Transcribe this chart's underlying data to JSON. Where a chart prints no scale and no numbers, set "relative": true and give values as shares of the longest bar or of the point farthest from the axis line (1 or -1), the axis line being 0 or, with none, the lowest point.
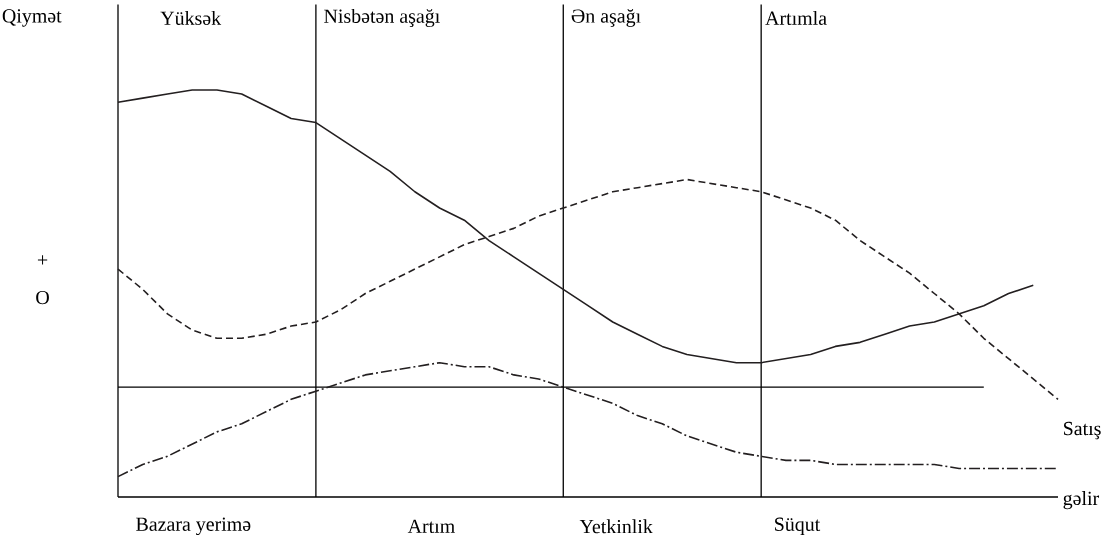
{
  "chart_data": {
    "type": "line",
    "relative": true,
    "ylabel": "Qiymət",
    "categories": [
      null,
      null,
      null,
      null,
      null,
      null,
      null,
      null,
      null,
      null,
      null,
      null,
      null,
      null,
      null,
      null,
      null,
      null,
      null,
      null,
      null,
      null,
      null,
      null,
      null,
      null,
      null,
      null,
      null,
      null,
      null,
      null,
      null,
      null,
      null,
      null,
      null,
      null,
      null
    ],
    "series": [
      {
        "color": "#231f20",
        "line_style": "solid",
        "values": [
          0.97,
          0.98,
          0.99,
          1.0,
          1.0,
          0.99,
          0.96,
          0.93,
          0.92,
          0.88,
          0.84,
          0.8,
          0.75,
          0.71,
          0.68,
          0.63,
          0.59,
          0.55,
          0.51,
          0.47,
          0.43,
          0.4,
          0.37,
          0.35,
          0.34,
          0.33,
          0.33,
          0.34,
          0.35,
          0.37,
          0.38,
          0.4,
          0.42,
          0.43,
          0.45,
          0.47,
          0.5,
          0.52,
          null
        ]
      },
      {
        "name": "Satış",
        "color": "#231f20",
        "line_style": "dashed",
        "values": [
          0.56,
          0.51,
          0.45,
          0.41,
          0.39,
          0.39,
          0.4,
          0.42,
          0.43,
          0.46,
          0.5,
          0.53,
          0.56,
          0.59,
          0.62,
          0.64,
          0.66,
          0.69,
          0.71,
          0.73,
          0.75,
          0.76,
          0.77,
          0.78,
          0.77,
          0.76,
          0.75,
          0.73,
          0.71,
          0.68,
          0.63,
          0.59,
          0.55,
          0.5,
          0.45,
          0.39,
          0.34,
          0.29,
          0.24
        ]
      },
      {
        "name": "gəlir",
        "color": "#231f20",
        "line_style": "dashdot",
        "values": [
          0.05,
          0.08,
          0.1,
          0.13,
          0.16,
          0.18,
          0.21,
          0.24,
          0.26,
          0.28,
          0.3,
          0.31,
          0.32,
          0.33,
          0.32,
          0.32,
          0.3,
          0.29,
          0.27,
          0.25,
          0.23,
          0.2,
          0.18,
          0.15,
          0.13,
          0.11,
          0.1,
          0.09,
          0.09,
          0.08,
          0.08,
          0.08,
          0.08,
          0.08,
          0.07,
          0.07,
          0.07,
          0.07,
          0.07
        ]
      }
    ],
    "grid": "x",
    "ref_lines": [
      {
        "axis": "y",
        "value": 0.27
      }
    ],
    "annotations": [
      "Yüksək",
      "Nisbətən aşağı",
      "Ən aşağı",
      "Artımla",
      "Bazara yerimə",
      "Artım",
      "Yetkinlik",
      "Süqut",
      "+",
      "O"
    ]
  }
}
